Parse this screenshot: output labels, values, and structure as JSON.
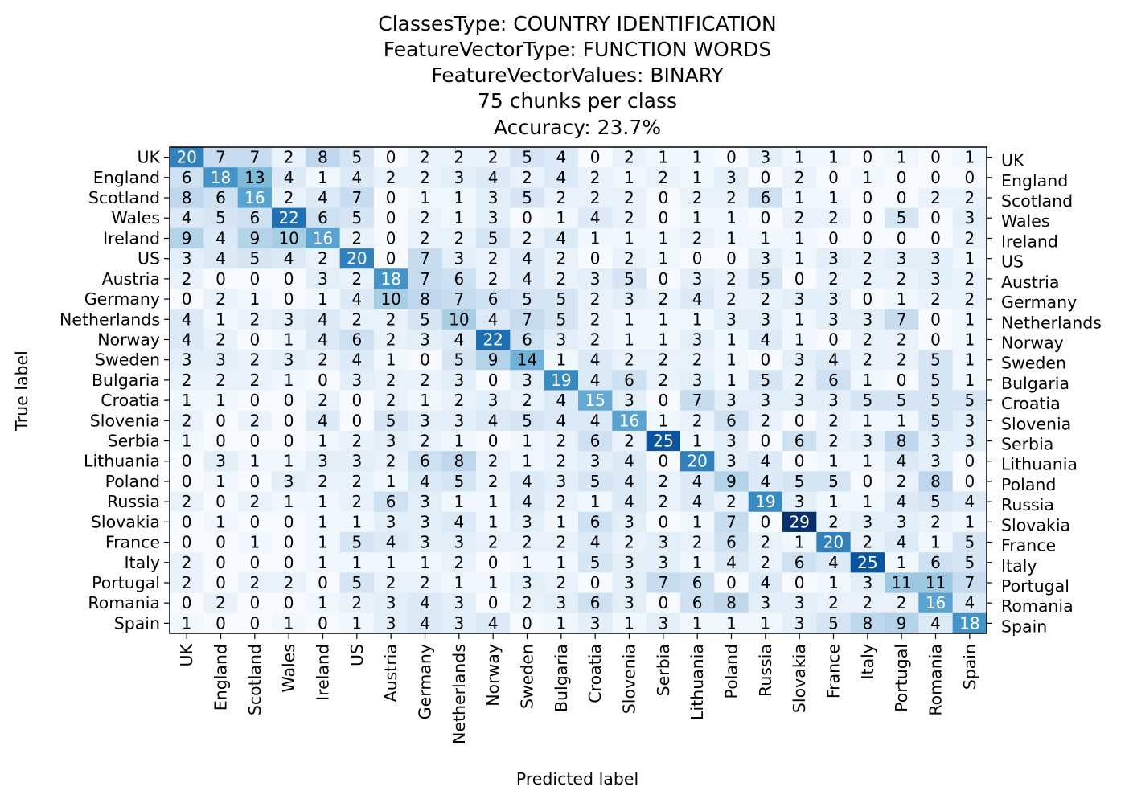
{
  "chart_data": {
    "type": "heatmap",
    "title_lines": [
      "ClassesType: COUNTRY IDENTIFICATION",
      "FeatureVectorType: FUNCTION WORDS",
      "FeatureVectorValues: BINARY",
      "75 chunks per class",
      "Accuracy: 23.7%"
    ],
    "xlabel": "Predicted label",
    "ylabel": "True label",
    "labels": [
      "UK",
      "England",
      "Scotland",
      "Wales",
      "Ireland",
      "US",
      "Austria",
      "Germany",
      "Netherlands",
      "Norway",
      "Sweden",
      "Bulgaria",
      "Croatia",
      "Slovenia",
      "Serbia",
      "Lithuania",
      "Poland",
      "Russia",
      "Slovakia",
      "France",
      "Italy",
      "Portugal",
      "Romania",
      "Spain"
    ],
    "colormap": "Blues",
    "value_range": [
      0,
      29
    ],
    "matrix": [
      [
        20,
        7,
        7,
        2,
        8,
        5,
        0,
        2,
        2,
        2,
        5,
        4,
        0,
        2,
        1,
        1,
        0,
        3,
        1,
        1,
        0,
        1,
        0,
        1
      ],
      [
        6,
        18,
        13,
        4,
        1,
        4,
        2,
        2,
        3,
        4,
        2,
        4,
        2,
        1,
        2,
        1,
        3,
        0,
        2,
        0,
        1,
        0,
        0,
        0
      ],
      [
        8,
        6,
        16,
        2,
        4,
        7,
        0,
        1,
        1,
        3,
        5,
        2,
        2,
        2,
        0,
        2,
        2,
        6,
        1,
        1,
        0,
        0,
        2,
        2
      ],
      [
        4,
        5,
        6,
        22,
        6,
        5,
        0,
        2,
        1,
        3,
        0,
        1,
        4,
        2,
        0,
        1,
        1,
        0,
        2,
        2,
        0,
        5,
        0,
        3
      ],
      [
        9,
        4,
        9,
        10,
        16,
        2,
        0,
        2,
        2,
        5,
        2,
        4,
        1,
        1,
        1,
        2,
        1,
        1,
        1,
        0,
        0,
        0,
        0,
        2
      ],
      [
        3,
        4,
        5,
        4,
        2,
        20,
        0,
        7,
        3,
        2,
        4,
        2,
        0,
        2,
        1,
        0,
        0,
        3,
        1,
        3,
        2,
        3,
        3,
        1
      ],
      [
        2,
        0,
        0,
        0,
        3,
        2,
        18,
        7,
        6,
        2,
        4,
        2,
        3,
        5,
        0,
        3,
        2,
        5,
        0,
        2,
        2,
        2,
        3,
        2
      ],
      [
        0,
        2,
        1,
        0,
        1,
        4,
        10,
        8,
        7,
        6,
        5,
        5,
        2,
        3,
        2,
        4,
        2,
        2,
        3,
        3,
        0,
        1,
        2,
        2
      ],
      [
        4,
        1,
        2,
        3,
        4,
        2,
        2,
        5,
        10,
        4,
        7,
        5,
        2,
        1,
        1,
        1,
        3,
        3,
        1,
        3,
        3,
        7,
        0,
        1
      ],
      [
        4,
        2,
        0,
        1,
        4,
        6,
        2,
        3,
        4,
        22,
        6,
        3,
        2,
        1,
        1,
        3,
        1,
        4,
        1,
        0,
        2,
        2,
        0,
        1
      ],
      [
        3,
        3,
        2,
        3,
        2,
        4,
        1,
        0,
        5,
        9,
        14,
        1,
        4,
        2,
        2,
        2,
        1,
        0,
        3,
        4,
        2,
        2,
        5,
        1
      ],
      [
        2,
        2,
        2,
        1,
        0,
        3,
        2,
        2,
        3,
        0,
        3,
        19,
        4,
        6,
        2,
        3,
        1,
        5,
        2,
        6,
        1,
        0,
        5,
        1
      ],
      [
        1,
        1,
        0,
        0,
        2,
        0,
        2,
        1,
        2,
        3,
        2,
        4,
        15,
        3,
        0,
        7,
        3,
        3,
        3,
        3,
        5,
        5,
        5,
        5
      ],
      [
        2,
        0,
        2,
        0,
        4,
        0,
        5,
        3,
        3,
        4,
        5,
        4,
        4,
        16,
        1,
        2,
        6,
        2,
        0,
        2,
        1,
        1,
        5,
        3
      ],
      [
        1,
        0,
        0,
        0,
        1,
        2,
        3,
        2,
        1,
        0,
        1,
        2,
        6,
        2,
        25,
        1,
        3,
        0,
        6,
        2,
        3,
        8,
        3,
        3
      ],
      [
        0,
        3,
        1,
        1,
        3,
        3,
        2,
        6,
        8,
        2,
        1,
        2,
        3,
        4,
        0,
        20,
        3,
        4,
        0,
        1,
        1,
        4,
        3,
        0
      ],
      [
        0,
        1,
        0,
        3,
        2,
        2,
        1,
        4,
        5,
        2,
        4,
        3,
        5,
        4,
        2,
        4,
        9,
        4,
        5,
        5,
        0,
        2,
        8,
        0
      ],
      [
        2,
        0,
        2,
        1,
        1,
        2,
        6,
        3,
        1,
        1,
        4,
        2,
        1,
        4,
        2,
        4,
        2,
        19,
        3,
        1,
        1,
        4,
        5,
        4
      ],
      [
        0,
        1,
        0,
        0,
        1,
        1,
        3,
        3,
        4,
        1,
        3,
        1,
        6,
        3,
        0,
        1,
        7,
        0,
        29,
        2,
        3,
        3,
        2,
        1
      ],
      [
        0,
        0,
        1,
        0,
        1,
        5,
        4,
        3,
        3,
        2,
        2,
        2,
        4,
        2,
        3,
        2,
        6,
        2,
        1,
        20,
        2,
        4,
        1,
        5
      ],
      [
        2,
        0,
        0,
        0,
        1,
        1,
        1,
        1,
        2,
        0,
        1,
        1,
        5,
        3,
        3,
        1,
        4,
        2,
        6,
        4,
        25,
        1,
        6,
        5
      ],
      [
        2,
        0,
        2,
        2,
        0,
        5,
        2,
        2,
        1,
        1,
        3,
        2,
        0,
        3,
        7,
        6,
        0,
        4,
        0,
        1,
        3,
        11,
        11,
        7
      ],
      [
        0,
        2,
        0,
        0,
        1,
        2,
        3,
        4,
        3,
        0,
        2,
        3,
        6,
        3,
        0,
        6,
        8,
        3,
        3,
        2,
        2,
        2,
        16,
        4
      ],
      [
        1,
        0,
        0,
        1,
        0,
        1,
        3,
        4,
        3,
        4,
        0,
        1,
        3,
        1,
        3,
        1,
        1,
        1,
        3,
        5,
        8,
        9,
        4,
        18
      ]
    ]
  }
}
